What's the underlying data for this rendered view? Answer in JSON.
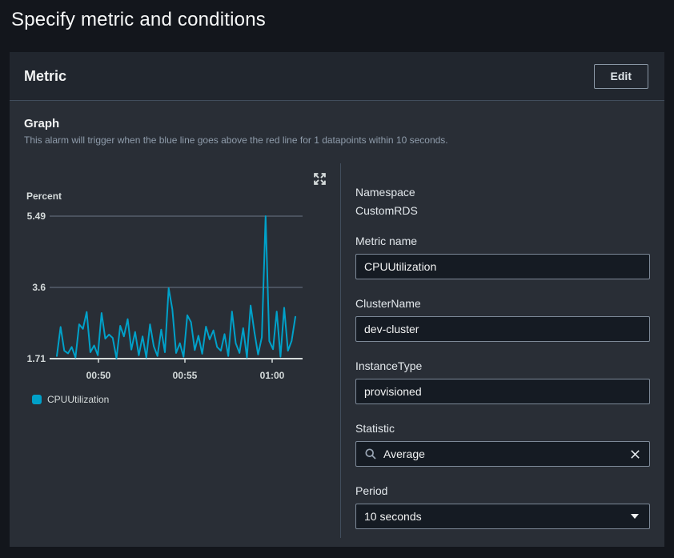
{
  "page": {
    "title": "Specify metric and conditions"
  },
  "panel": {
    "title": "Metric",
    "edit_button": "Edit",
    "section_title": "Graph",
    "section_description": "This alarm will trigger when the blue line goes above the red line for 1 datapoints within 10 seconds."
  },
  "chart_data": {
    "type": "line",
    "unit_label": "Percent",
    "ylim": [
      1.71,
      5.49
    ],
    "yticks": [
      5.49,
      3.6,
      1.71
    ],
    "xticks": [
      "00:50",
      "00:55",
      "01:00"
    ],
    "grid": "horizontal-only",
    "legend_position": "bottom-left",
    "series": [
      {
        "name": "CPUUtilization",
        "color": "#00a1c9",
        "values": [
          1.78,
          2.55,
          1.92,
          1.85,
          2.02,
          1.74,
          2.62,
          2.5,
          2.95,
          1.88,
          2.06,
          1.8,
          2.92,
          2.24,
          2.35,
          2.26,
          1.72,
          2.58,
          2.3,
          2.76,
          1.95,
          2.42,
          1.8,
          2.3,
          1.74,
          2.62,
          2.04,
          1.78,
          2.48,
          1.88,
          3.58,
          3.02,
          1.86,
          2.12,
          1.76,
          2.86,
          2.68,
          1.94,
          2.32,
          1.84,
          2.56,
          2.22,
          2.46,
          2.02,
          1.92,
          2.36,
          1.78,
          2.96,
          2.12,
          1.86,
          2.52,
          1.74,
          3.12,
          2.42,
          1.82,
          2.28,
          5.49,
          2.18,
          1.96,
          2.96,
          1.76,
          3.06,
          1.92,
          2.18,
          2.82
        ]
      }
    ]
  },
  "fields": {
    "namespace": {
      "label": "Namespace",
      "value": "CustomRDS"
    },
    "metric_name": {
      "label": "Metric name",
      "value": "CPUUtilization"
    },
    "cluster_name": {
      "label": "ClusterName",
      "value": "dev-cluster"
    },
    "instance_type": {
      "label": "InstanceType",
      "value": "provisioned"
    },
    "statistic": {
      "label": "Statistic",
      "value": "Average"
    },
    "period": {
      "label": "Period",
      "value": "10 seconds"
    }
  },
  "icons": {
    "expand": "expand-arrows-icon",
    "search": "search-icon",
    "clear": "close-icon",
    "dropdown": "caret-down-icon"
  },
  "colors": {
    "series_line": "#00a1c9",
    "panel_body": "#292e36",
    "panel_header": "#21262e",
    "page_background": "#13161c",
    "divider": "#414d5c",
    "input_border": "#7d8998"
  }
}
